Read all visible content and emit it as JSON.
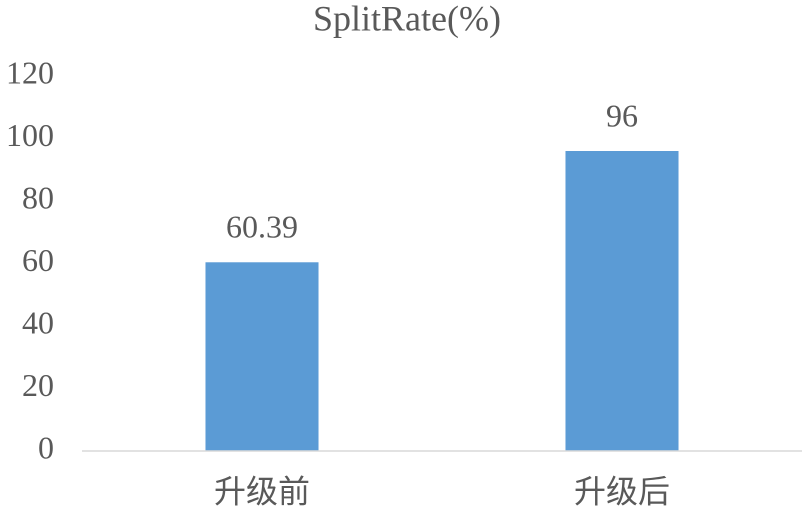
{
  "chart_data": {
    "type": "bar",
    "title": "SplitRate(%)",
    "categories": [
      "升级前",
      "升级后"
    ],
    "values": [
      60.39,
      96
    ],
    "color": "#5b9bd5",
    "ylim": [
      0,
      120
    ],
    "yticks": [
      0,
      20,
      40,
      60,
      80,
      100,
      120
    ],
    "grid": false
  }
}
